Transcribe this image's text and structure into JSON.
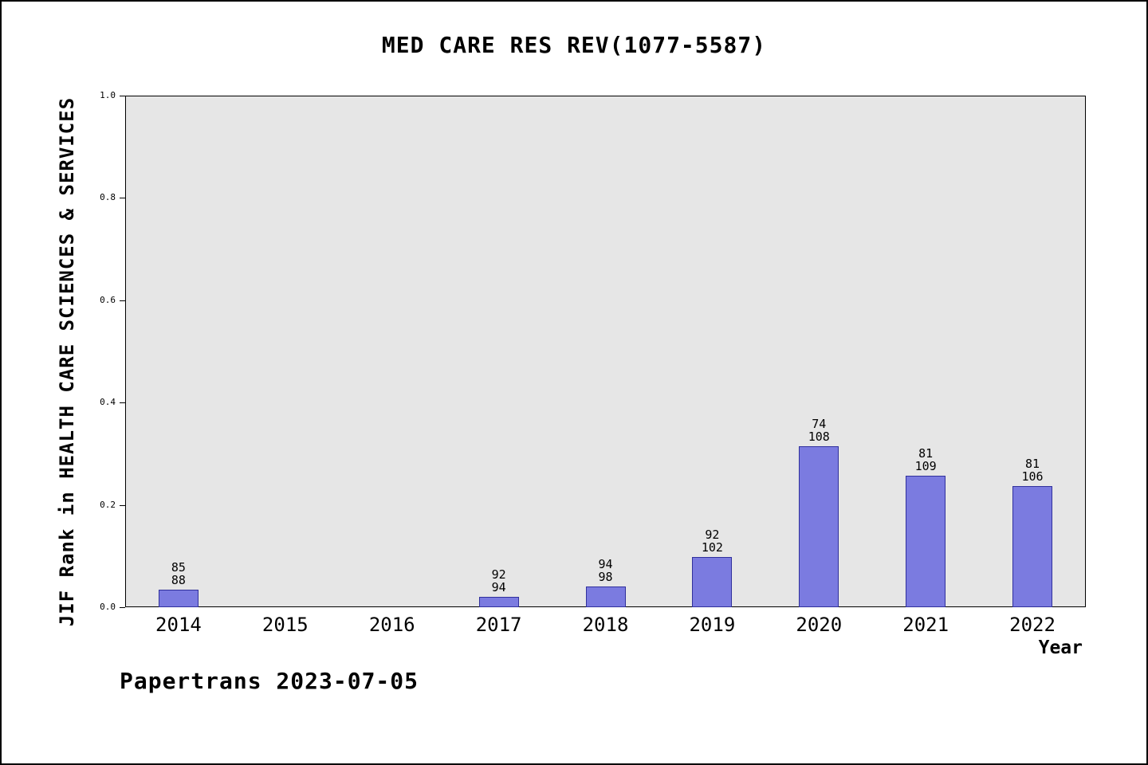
{
  "header": {
    "title": "MED CARE RES REV(1077-5587)"
  },
  "axes": {
    "x_label": "Year",
    "y_label": "JIF Rank in HEALTH CARE SCIENCES & SERVICES"
  },
  "footer": {
    "text": "Papertrans 2023-07-05"
  },
  "chart_data": {
    "type": "bar",
    "title": "MED CARE RES REV(1077-5587)",
    "xlabel": "Year",
    "ylabel": "JIF Rank in HEALTH CARE SCIENCES & SERVICES",
    "ylim": [
      0.0,
      1.0
    ],
    "yticks": [
      "0.0",
      "0.2",
      "0.4",
      "0.6",
      "0.8",
      "1.0"
    ],
    "grid": false,
    "legend": "none",
    "plot_bg": "#e6e6e6",
    "bar_color": "#7b7be0",
    "bar_border_color": "#30309c",
    "categories": [
      "2014",
      "2015",
      "2016",
      "2017",
      "2018",
      "2019",
      "2020",
      "2021",
      "2022"
    ],
    "bars": [
      {
        "year": "2014",
        "rank": 85,
        "total": 88,
        "value": 0.034
      },
      {
        "year": "2015",
        "rank": null,
        "total": null,
        "value": 0
      },
      {
        "year": "2016",
        "rank": null,
        "total": null,
        "value": 0
      },
      {
        "year": "2017",
        "rank": 92,
        "total": 94,
        "value": 0.021
      },
      {
        "year": "2018",
        "rank": 94,
        "total": 98,
        "value": 0.041
      },
      {
        "year": "2019",
        "rank": 92,
        "total": 102,
        "value": 0.098
      },
      {
        "year": "2020",
        "rank": 74,
        "total": 108,
        "value": 0.315
      },
      {
        "year": "2021",
        "rank": 81,
        "total": 109,
        "value": 0.257
      },
      {
        "year": "2022",
        "rank": 81,
        "total": 106,
        "value": 0.236
      }
    ]
  }
}
